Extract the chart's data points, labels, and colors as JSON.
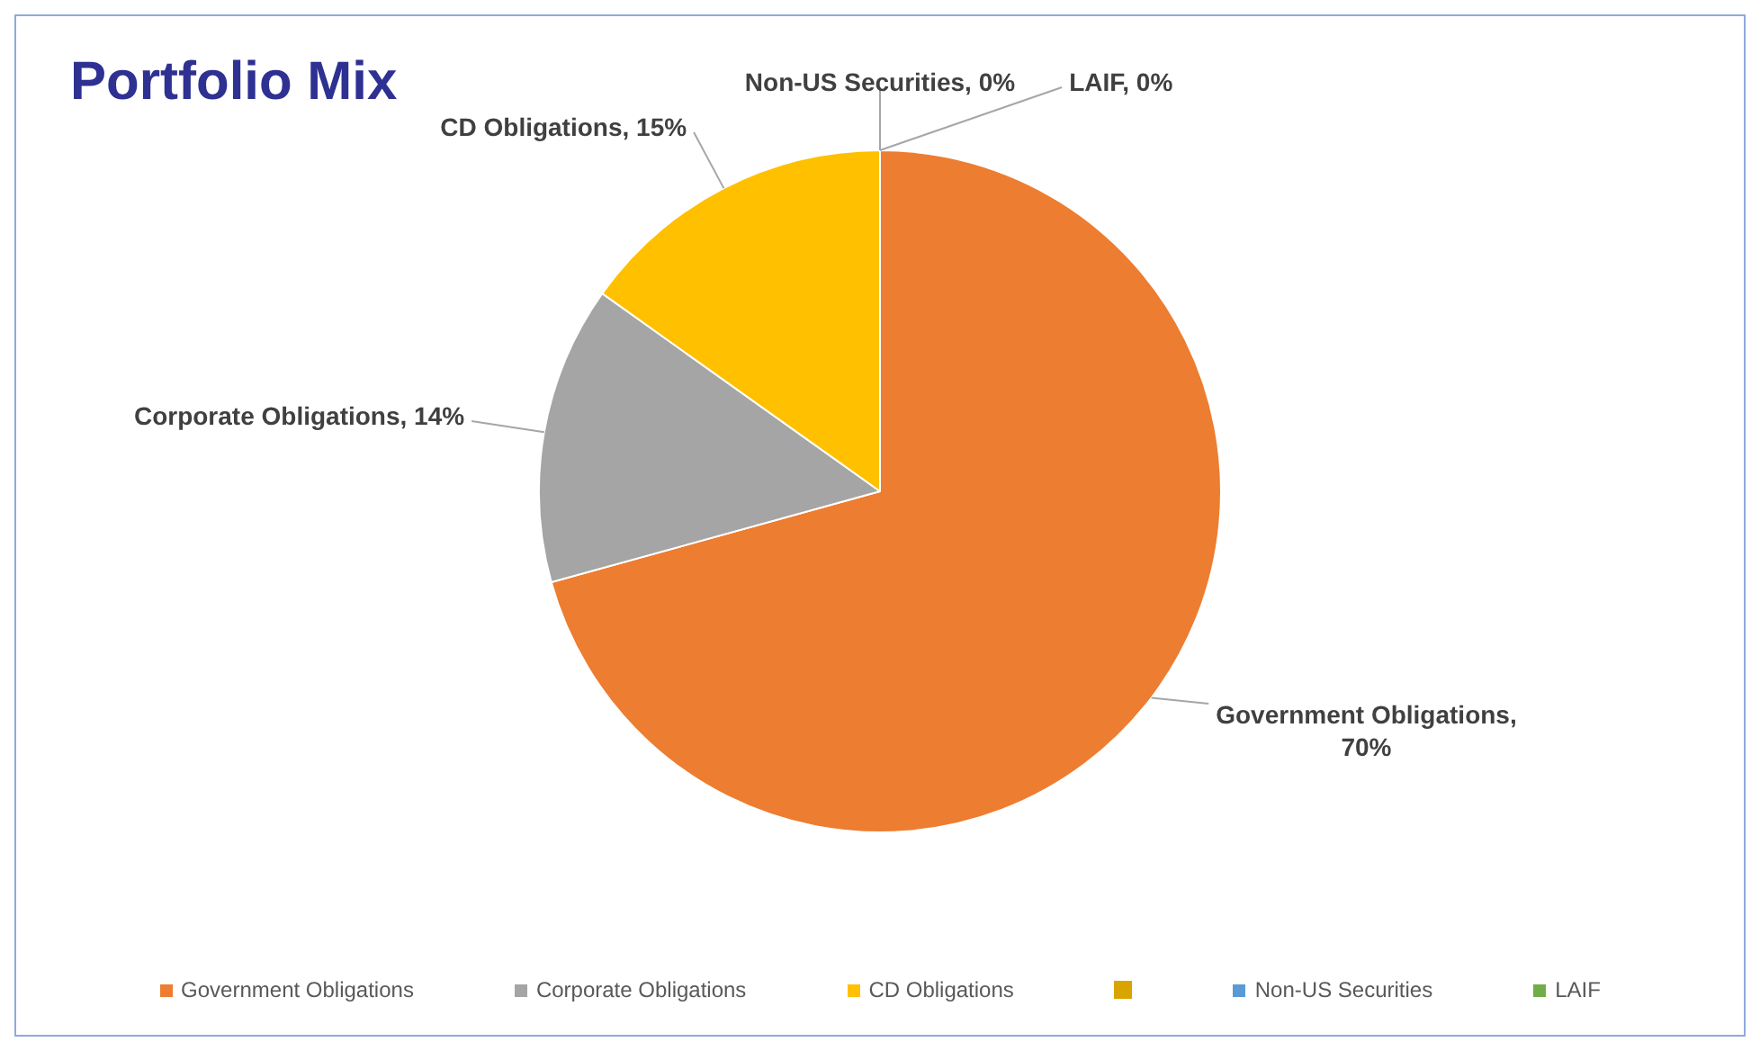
{
  "chart_data": {
    "type": "pie",
    "title": "Portfolio Mix",
    "categories": [
      "Government Obligations",
      "Corporate Obligations",
      "CD Obligations",
      null,
      "Non-US Securities",
      "LAIF"
    ],
    "values": [
      70,
      14,
      15,
      0,
      0,
      0
    ],
    "colors": [
      "#ed7d31",
      "#a5a5a5",
      "#ffc000",
      "#d9a300",
      "#5b9bd5",
      "#70ad47"
    ],
    "value_labels": [
      "Government Obligations, 70%",
      "Corporate Obligations, 14%",
      "CD Obligations, 15%",
      null,
      "Non-US Securities, 0%",
      "LAIF, 0%"
    ],
    "legend": "bottom"
  }
}
